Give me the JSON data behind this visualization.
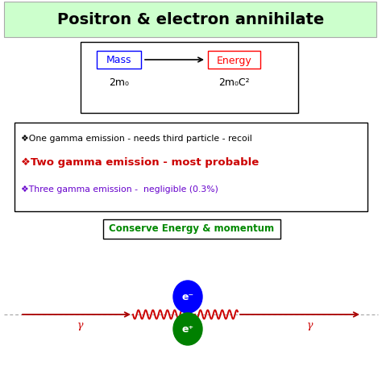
{
  "title": "Positron & electron annihilate",
  "title_bg": "#ccffcc",
  "title_fontsize": 14,
  "mass_label": "Mass",
  "energy_label": "Energy",
  "mass_sub": "2m₀",
  "energy_sub": "2m₀C²",
  "bullet1": "❖One gamma emission - needs third particle - recoil",
  "bullet2": "❖Two gamma emission - most probable",
  "bullet3": "❖Three gamma emission -  negligible (0.3%)",
  "bullet1_color": "#000000",
  "bullet2_color": "#cc0000",
  "bullet3_color": "#6600cc",
  "conserve_text": "Conserve Energy & momentum",
  "conserve_color": "#008800",
  "gamma_label": "γ",
  "electron_label": "e⁻",
  "positron_label": "e⁺",
  "bg_color": "#ffffff",
  "wave_color": "#cc0000",
  "arrow_color": "#aa0000"
}
